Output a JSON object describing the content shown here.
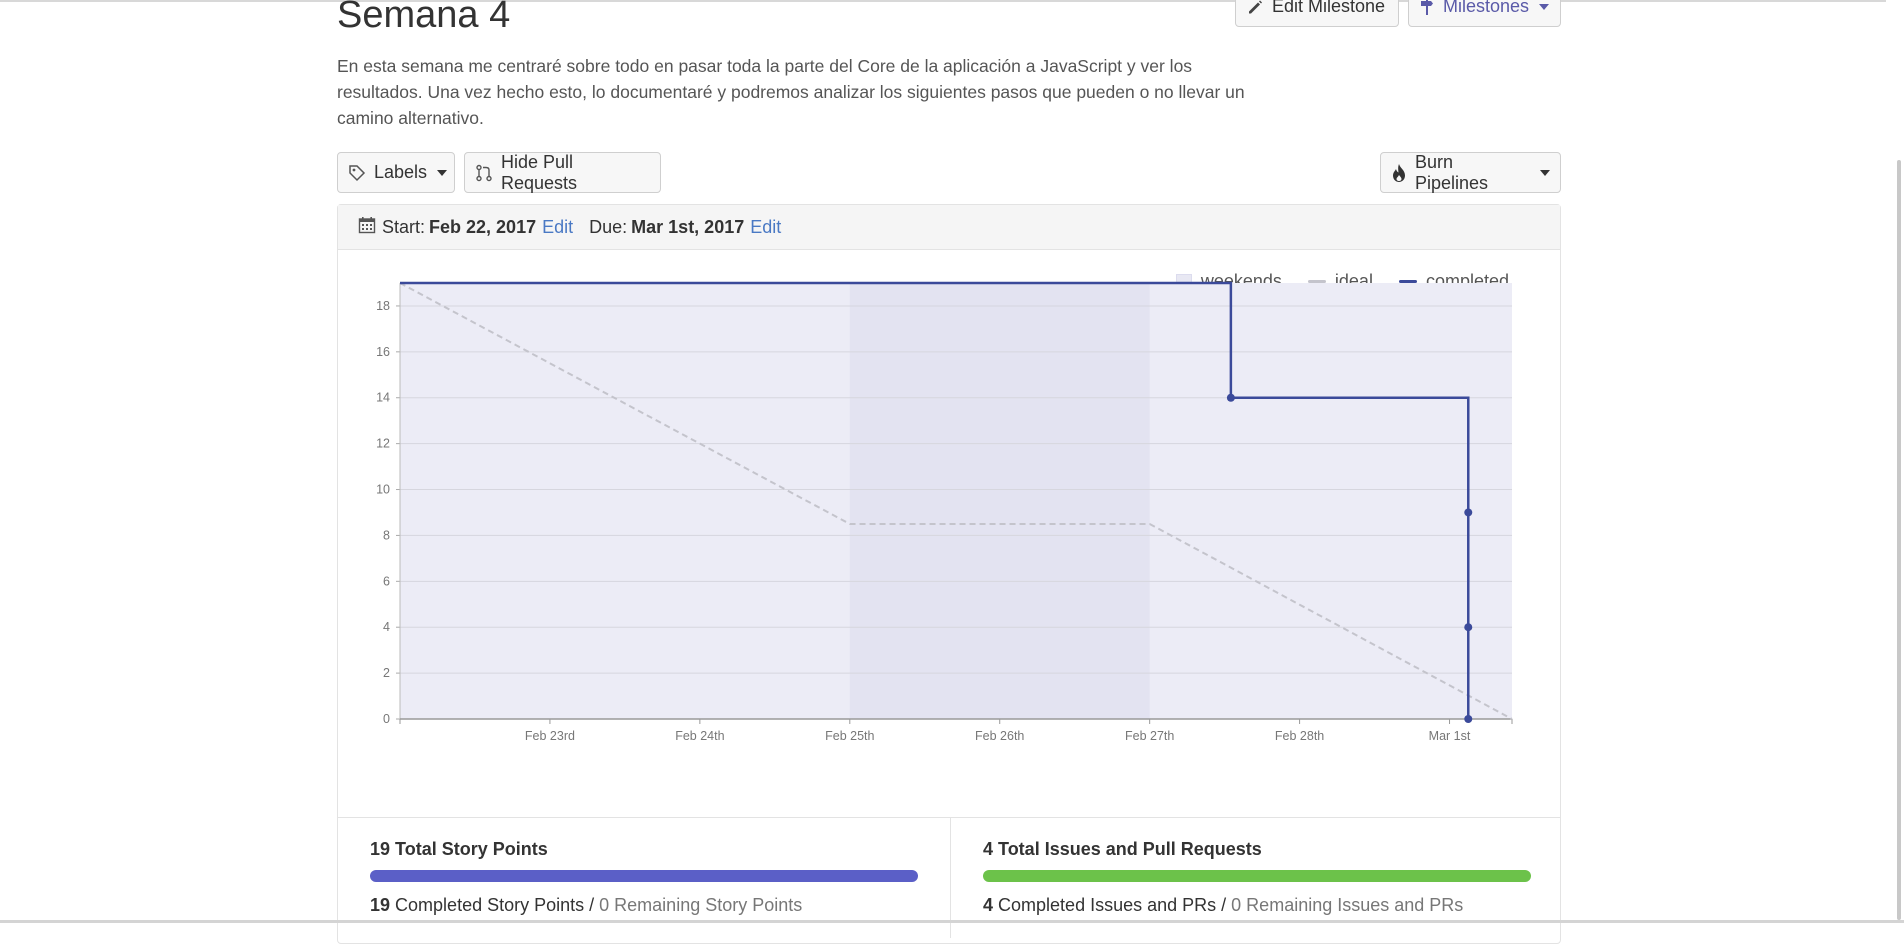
{
  "milestone": {
    "title": "Semana 4",
    "description": "En esta semana me centraré sobre todo en pasar toda la parte del Core de la aplicación a JavaScript y ver los resultados. Una vez hecho esto, lo documentaré y podremos analizar los siguientes pasos que pueden o no llevar un camino alternativo.",
    "edit_button": "Edit Milestone",
    "milestones_dropdown": "Milestones"
  },
  "toolbar": {
    "labels_button": "Labels",
    "hide_prs_button": "Hide Pull Requests",
    "burn_pipelines_button": "Burn Pipelines"
  },
  "dates": {
    "start_label": "Start:",
    "start_value": "Feb 22, 2017",
    "start_edit": "Edit",
    "due_label": "Due:",
    "due_value": "Mar 1st, 2017",
    "due_edit": "Edit"
  },
  "legend": {
    "weekends": "weekends",
    "ideal": "ideal",
    "completed": "completed"
  },
  "colors": {
    "completed": "#3b4a9a",
    "ideal": "#c4c4cc",
    "weekend_fill": "#e3e3f1",
    "area_fill": "#ececf6",
    "story_bar": "#5b5fc7",
    "issues_bar": "#6cc24a"
  },
  "chart_data": {
    "type": "line",
    "title": "",
    "xlabel": "",
    "ylabel": "",
    "xlim": [
      "2017-02-22",
      "2017-03-01T10:00"
    ],
    "ylim": [
      0,
      19
    ],
    "y_ticks": [
      0,
      2,
      4,
      6,
      8,
      10,
      12,
      14,
      16,
      18
    ],
    "x_tick_labels": [
      "Feb 23rd",
      "Feb 24th",
      "Feb 25th",
      "Feb 26th",
      "Feb 27th",
      "Feb 28th",
      "Mar 1st"
    ],
    "grid": true,
    "legend_position": "top-right",
    "weekend_range": [
      "2017-02-25",
      "2017-02-27"
    ],
    "series": [
      {
        "name": "ideal",
        "style": "dashed",
        "points": [
          {
            "x": "2017-02-22",
            "y": 19
          },
          {
            "x": "2017-02-25",
            "y": 8.5
          },
          {
            "x": "2017-02-27",
            "y": 8.5
          },
          {
            "x": "2017-03-01T10:00",
            "y": 0
          }
        ]
      },
      {
        "name": "completed",
        "style": "step",
        "points": [
          {
            "x": "2017-02-22",
            "y": 19
          },
          {
            "x": "2017-02-27T13:00",
            "y": 19
          },
          {
            "x": "2017-02-27T13:00",
            "y": 14
          },
          {
            "x": "2017-03-01T03:00",
            "y": 14
          },
          {
            "x": "2017-03-01T03:00",
            "y": 9
          },
          {
            "x": "2017-03-01T03:00",
            "y": 4
          },
          {
            "x": "2017-03-01T03:00",
            "y": 0
          }
        ],
        "markers": [
          {
            "x": "2017-02-27T13:00",
            "y": 14
          },
          {
            "x": "2017-03-01T03:00",
            "y": 9
          },
          {
            "x": "2017-03-01T03:00",
            "y": 4
          },
          {
            "x": "2017-03-01T03:00",
            "y": 0
          }
        ]
      }
    ]
  },
  "stats": {
    "story": {
      "total_count": "19",
      "total_label": "Total Story Points",
      "progress": 1.0,
      "completed_count": "19",
      "completed_label": "Completed Story Points /",
      "remaining_label": "0 Remaining Story Points"
    },
    "issues": {
      "total_count": "4",
      "total_label": "Total Issues and Pull Requests",
      "progress": 1.0,
      "completed_count": "4",
      "completed_label": "Completed Issues and PRs /",
      "remaining_label": "0 Remaining Issues and PRs"
    }
  }
}
